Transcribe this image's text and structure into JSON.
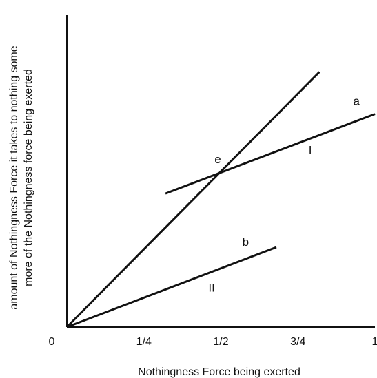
{
  "chart_data": {
    "type": "line",
    "title": "",
    "xlabel": "Nothingness Force being exerted",
    "ylabel_lines": [
      "amount of Nothingness Force it takes to nothing some",
      "more of the Nothingness force being exerted"
    ],
    "xlim": [
      0,
      1
    ],
    "ylim": [
      0,
      1
    ],
    "x_ticks": [
      {
        "value": 0,
        "label": "0"
      },
      {
        "value": 0.25,
        "label": "1/4"
      },
      {
        "value": 0.5,
        "label": "1/2"
      },
      {
        "value": 0.75,
        "label": "3/4"
      },
      {
        "value": 1,
        "label": "1"
      }
    ],
    "grid": false,
    "legend": "none",
    "series": [
      {
        "x": [
          0,
          0.82
        ],
        "y": [
          0,
          0.818
        ]
      },
      {
        "x": [
          0.32,
          1.0
        ],
        "y": [
          0.428,
          0.683
        ]
      },
      {
        "x": [
          0,
          0.68
        ],
        "y": [
          0,
          0.256
        ]
      }
    ],
    "annotations": [
      {
        "text": "a",
        "x": 0.94,
        "y": 0.712
      },
      {
        "text": "I",
        "x": 0.79,
        "y": 0.555
      },
      {
        "text": "e",
        "x": 0.49,
        "y": 0.525
      },
      {
        "text": "b",
        "x": 0.58,
        "y": 0.26
      },
      {
        "text": "II",
        "x": 0.47,
        "y": 0.114
      }
    ]
  }
}
